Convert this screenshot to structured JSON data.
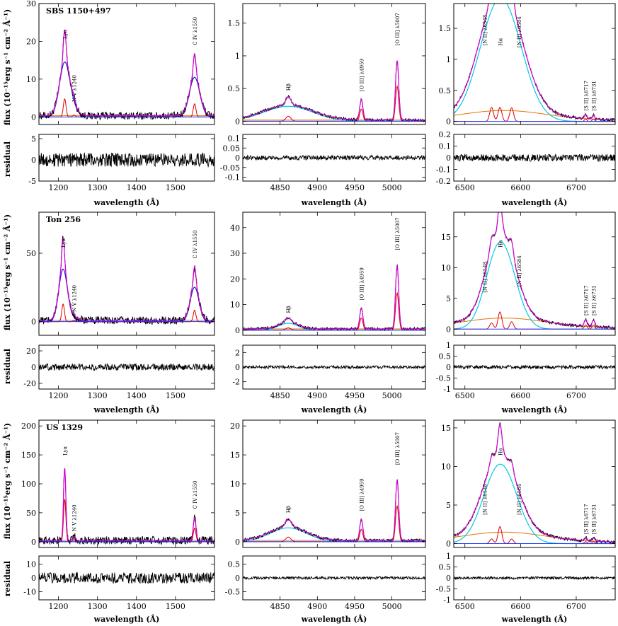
{
  "axis_titles": {
    "xlabel": "wavelength (Å)",
    "ylabel": "flux (10⁻¹⁵erg s⁻¹ cm⁻² Å⁻¹)",
    "residual_label": "residual"
  },
  "colors": {
    "observed": "#000000",
    "total_model": "#d400d4",
    "broad_component": "#00c8e6",
    "narrow_component": "#e00000",
    "fe_continuum": "#e67300",
    "wing_component": "#1e1ed2",
    "lya_wing": "#00b400",
    "continuum": "#1e3cff"
  },
  "chart_data": [
    {
      "type": "line",
      "object": "SBS 1150+497",
      "region": "uv",
      "xlim": [
        1150,
        1600
      ],
      "ylim": [
        -2,
        30
      ],
      "xticks": [
        1200,
        1300,
        1400,
        1500
      ],
      "yticks": [
        0,
        10,
        20,
        30
      ],
      "residual_ylim": [
        -5,
        6
      ],
      "residual_yticks": [
        -5,
        0,
        5
      ],
      "lines": [
        {
          "label": "Lyα",
          "x": 1216,
          "height": 24.0,
          "width": 12
        },
        {
          "label": "N V λ1240",
          "x": 1240,
          "height": 2.5,
          "width": 10
        },
        {
          "label": "C IV λ1550",
          "x": 1549,
          "height": 17.5,
          "width": 12
        }
      ],
      "show_xlabel": true,
      "residual_noise": 1.6
    },
    {
      "type": "line",
      "object": "SBS 1150+497",
      "region": "hbeta",
      "xlim": [
        4800,
        5045
      ],
      "ylim": [
        -0.05,
        1.8
      ],
      "xticks": [
        4850,
        4900,
        4950,
        5000
      ],
      "yticks": [
        0,
        0.5,
        1,
        1.5
      ],
      "residual_ylim": [
        -0.12,
        0.12
      ],
      "residual_yticks": [
        -0.1,
        -0.05,
        0,
        0.05,
        0.1
      ],
      "lines": [
        {
          "label": "Hβ",
          "x": 4861,
          "height": 0.38,
          "width": 30
        },
        {
          "label": "[O III] λ4959",
          "x": 4959,
          "height": 0.37,
          "width": 3
        },
        {
          "label": "[O III] λ5007",
          "x": 5007,
          "height": 1.07,
          "width": 3
        }
      ],
      "show_xlabel": true,
      "residual_noise": 0.012
    },
    {
      "type": "line",
      "object": "SBS 1150+497",
      "region": "halpha",
      "xlim": [
        6480,
        6770
      ],
      "ylim": [
        -0.05,
        1.9
      ],
      "xticks": [
        6500,
        6600,
        6700
      ],
      "yticks": [
        0,
        0.5,
        1,
        1.5
      ],
      "residual_ylim": [
        -0.2,
        0.2
      ],
      "residual_yticks": [
        -0.2,
        -0.1,
        0,
        0.1,
        0.2
      ],
      "lines": [
        {
          "label": "[N II] λ6548",
          "x": 6548,
          "height": 1.13,
          "width": 30
        },
        {
          "label": "Hα",
          "x": 6563,
          "height": 1.13,
          "width": 30
        },
        {
          "label": "[N II] λ6584",
          "x": 6584,
          "height": 1.1,
          "width": 30
        },
        {
          "label": "[S II] λ6717",
          "x": 6717,
          "height": 0.08,
          "width": 3
        },
        {
          "label": "[S II] λ6731",
          "x": 6731,
          "height": 0.08,
          "width": 3
        }
      ],
      "show_xlabel": true,
      "residual_noise": 0.03
    },
    {
      "type": "line",
      "object": "Ton 256",
      "region": "uv",
      "xlim": [
        1150,
        1600
      ],
      "ylim": [
        -10,
        80
      ],
      "xticks": [
        1200,
        1300,
        1400,
        1500
      ],
      "yticks": [
        0,
        50
      ],
      "residual_ylim": [
        -27,
        27
      ],
      "residual_yticks": [
        -20,
        0,
        20
      ],
      "lines": [
        {
          "label": "Lyα",
          "x": 1212,
          "height": 64,
          "width": 10
        },
        {
          "label": "N V λ1240",
          "x": 1240,
          "height": 3,
          "width": 10
        },
        {
          "label": "C IV λ1550",
          "x": 1549,
          "height": 42,
          "width": 10
        }
      ],
      "show_xlabel": true,
      "residual_noise": 4
    },
    {
      "type": "line",
      "object": "Ton 256",
      "region": "hbeta",
      "xlim": [
        4800,
        5045
      ],
      "ylim": [
        -2,
        46
      ],
      "xticks": [
        4850,
        4900,
        4950,
        5000
      ],
      "yticks": [
        0,
        10,
        20,
        30,
        40
      ],
      "residual_ylim": [
        -3,
        3
      ],
      "residual_yticks": [
        -2,
        0,
        2
      ],
      "lines": [
        {
          "label": "Hβ",
          "x": 4861,
          "height": 4.5,
          "width": 12
        },
        {
          "label": "[O III] λ4959",
          "x": 4959,
          "height": 9.5,
          "width": 3
        },
        {
          "label": "[O III] λ5007",
          "x": 5007,
          "height": 29,
          "width": 3
        }
      ],
      "show_xlabel": true,
      "residual_noise": 0.2
    },
    {
      "type": "line",
      "object": "Ton 256",
      "region": "halpha",
      "xlim": [
        6480,
        6770
      ],
      "ylim": [
        -1,
        19
      ],
      "xticks": [
        6500,
        6600,
        6700
      ],
      "yticks": [
        0,
        5,
        10,
        15
      ],
      "residual_ylim": [
        -1,
        1
      ],
      "residual_yticks": [
        -1,
        -0.5,
        0,
        0.5,
        1
      ],
      "lines": [
        {
          "label": "[N II] λ6548",
          "x": 6548,
          "height": 5,
          "width": 20
        },
        {
          "label": "Hα",
          "x": 6563,
          "height": 14,
          "width": 20
        },
        {
          "label": "[N II] λ6584",
          "x": 6584,
          "height": 6,
          "width": 20
        },
        {
          "label": "[S II] λ6717",
          "x": 6717,
          "height": 1.3,
          "width": 4
        },
        {
          "label": "[S II] λ6731",
          "x": 6731,
          "height": 1.3,
          "width": 4
        }
      ],
      "show_xlabel": true,
      "residual_noise": 0.08
    },
    {
      "type": "line",
      "object": "US 1329",
      "region": "uv",
      "xlim": [
        1150,
        1600
      ],
      "ylim": [
        -10,
        210
      ],
      "xticks": [
        1200,
        1300,
        1400,
        1500
      ],
      "yticks": [
        0,
        50,
        100,
        150,
        200
      ],
      "residual_ylim": [
        -16,
        16
      ],
      "residual_yticks": [
        -10,
        0,
        10
      ],
      "lines": [
        {
          "label": "Lyα",
          "x": 1216,
          "height": 147,
          "width": 5
        },
        {
          "label": "N V λ1240",
          "x": 1240,
          "height": 8,
          "width": 8
        },
        {
          "label": "C IV λ1550",
          "x": 1549,
          "height": 47,
          "width": 7
        }
      ],
      "show_xlabel": true,
      "residual_noise": 4
    },
    {
      "type": "line",
      "object": "US 1329",
      "region": "hbeta",
      "xlim": [
        4800,
        5045
      ],
      "ylim": [
        -1,
        21
      ],
      "xticks": [
        4850,
        4900,
        4950,
        5000
      ],
      "yticks": [
        0,
        5,
        10,
        15,
        20
      ],
      "residual_ylim": [
        -0.8,
        0.8
      ],
      "residual_yticks": [
        -0.5,
        0,
        0.5
      ],
      "lines": [
        {
          "label": "Hβ",
          "x": 4861,
          "height": 4,
          "width": 22
        },
        {
          "label": "[O III] λ4959",
          "x": 4959,
          "height": 4.3,
          "width": 3
        },
        {
          "label": "[O III] λ5007",
          "x": 5007,
          "height": 12.3,
          "width": 3
        }
      ],
      "show_xlabel": true,
      "residual_noise": 0.05
    },
    {
      "type": "line",
      "object": "US 1329",
      "region": "halpha",
      "xlim": [
        6480,
        6770
      ],
      "ylim": [
        -0.5,
        16
      ],
      "xticks": [
        6500,
        6600,
        6700
      ],
      "yticks": [
        0,
        5,
        10,
        15
      ],
      "residual_ylim": [
        -1,
        1
      ],
      "residual_yticks": [
        -1,
        -0.5,
        0,
        0.5,
        1
      ],
      "lines": [
        {
          "label": "[N II] λ6548",
          "x": 6548,
          "height": 3,
          "width": 25
        },
        {
          "label": "Hα",
          "x": 6563,
          "height": 11,
          "width": 25
        },
        {
          "label": "[N II] λ6584",
          "x": 6584,
          "height": 3,
          "width": 25
        },
        {
          "label": "[S II] λ6717",
          "x": 6717,
          "height": 0.5,
          "width": 4
        },
        {
          "label": "[S II] λ6731",
          "x": 6731,
          "height": 0.5,
          "width": 4
        }
      ],
      "show_xlabel": true,
      "residual_noise": 0.06
    }
  ]
}
